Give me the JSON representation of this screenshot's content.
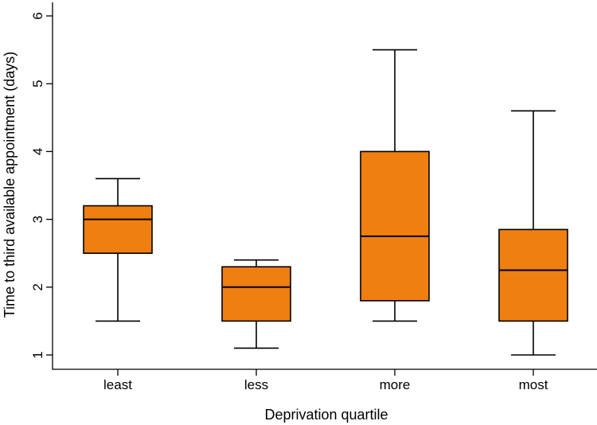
{
  "chart_data": {
    "type": "boxplot",
    "xlabel": "Deprivation quartile",
    "ylabel": "Time to third available appointment (days)",
    "ylim": [
      1,
      6
    ],
    "yticks": [
      "1",
      "2",
      "3",
      "4",
      "5",
      "6"
    ],
    "categories": [
      "least",
      "less",
      "more",
      "most"
    ],
    "box_color": "#ef7f10",
    "grid": false,
    "boxes": [
      {
        "category": "least",
        "min": 1.5,
        "q1": 2.5,
        "median": 3.0,
        "q3": 3.2,
        "max": 3.6
      },
      {
        "category": "less",
        "min": 1.1,
        "q1": 1.5,
        "median": 2.0,
        "q3": 2.3,
        "max": 2.4
      },
      {
        "category": "more",
        "min": 1.5,
        "q1": 1.8,
        "median": 2.75,
        "q3": 4.0,
        "max": 5.5
      },
      {
        "category": "most",
        "min": 1.0,
        "q1": 1.5,
        "median": 2.25,
        "q3": 2.85,
        "max": 4.6
      }
    ]
  }
}
